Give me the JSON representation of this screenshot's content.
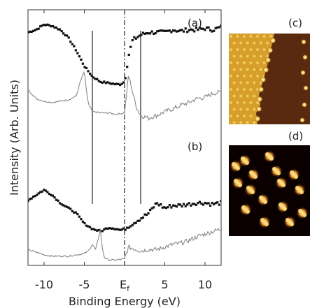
{
  "chart_data": [
    {
      "type": "scatter",
      "panels": [
        "(a)",
        "(b)"
      ],
      "xlabel": "Binding Energy (eV)",
      "ylabel": "Intensity (Arb. Units)",
      "xlim": [
        -12,
        12
      ],
      "x_tick_labels": [
        "-10",
        "-5",
        "E_f",
        "5",
        "10"
      ],
      "x_ticks": [
        -10,
        -5,
        0,
        5,
        10
      ],
      "ef_subscript": "f",
      "vertical_lines_ev": [
        -4,
        2
      ],
      "fermi_line_ev": 0,
      "series": [
        {
          "panel": "(a)",
          "style": "points",
          "color": "#111111",
          "x": [
            -12,
            -11,
            -10,
            -9,
            -8,
            -7,
            -6,
            -5,
            -4,
            -3,
            -2,
            -1,
            -0.5,
            0,
            0.5,
            1,
            2,
            3,
            4,
            5,
            6,
            7,
            8,
            9,
            10,
            11,
            12
          ],
          "y": [
            0.88,
            0.9,
            0.94,
            0.93,
            0.9,
            0.84,
            0.74,
            0.62,
            0.54,
            0.5,
            0.49,
            0.48,
            0.48,
            0.5,
            0.7,
            0.82,
            0.86,
            0.88,
            0.88,
            0.88,
            0.9,
            0.89,
            0.9,
            0.9,
            0.91,
            0.9,
            0.92
          ]
        },
        {
          "panel": "(a)",
          "style": "line",
          "color": "#888888",
          "x": [
            -12,
            -11,
            -10,
            -9,
            -8,
            -7,
            -6,
            -5.5,
            -5,
            -4.8,
            -4.5,
            -4,
            -3,
            -2,
            -1,
            0,
            0.5,
            1,
            1.5,
            2,
            3,
            4,
            5,
            6,
            7,
            8,
            9,
            10,
            11,
            12
          ],
          "y": [
            0.44,
            0.37,
            0.35,
            0.34,
            0.35,
            0.36,
            0.39,
            0.5,
            0.58,
            0.46,
            0.33,
            0.27,
            0.26,
            0.26,
            0.25,
            0.26,
            0.55,
            0.42,
            0.3,
            0.24,
            0.22,
            0.24,
            0.27,
            0.29,
            0.32,
            0.34,
            0.37,
            0.38,
            0.41,
            0.42
          ]
        },
        {
          "panel": "(b)",
          "style": "points",
          "color": "#111111",
          "x": [
            -12,
            -11,
            -10,
            -9,
            -8,
            -7,
            -6,
            -5,
            -4,
            -3,
            -2,
            -1,
            -0.5,
            0,
            0.5,
            1,
            2,
            3,
            4,
            5,
            6,
            7,
            8,
            9,
            10,
            11,
            12
          ],
          "y": [
            0.48,
            0.52,
            0.56,
            0.52,
            0.46,
            0.42,
            0.38,
            0.3,
            0.26,
            0.24,
            0.27,
            0.26,
            0.25,
            0.26,
            0.28,
            0.3,
            0.34,
            0.38,
            0.46,
            0.42,
            0.44,
            0.44,
            0.45,
            0.46,
            0.46,
            0.45,
            0.46
          ]
        },
        {
          "panel": "(b)",
          "style": "line",
          "color": "#888888",
          "x": [
            -12,
            -11,
            -10,
            -9,
            -8,
            -7,
            -6,
            -5,
            -4.5,
            -4,
            -3.6,
            -3.2,
            -3,
            -2.8,
            -2.5,
            -2,
            -1,
            0,
            0.5,
            1,
            2,
            3,
            4,
            5,
            6,
            7,
            8,
            9,
            10,
            11,
            12
          ],
          "y": [
            0.1,
            0.08,
            0.06,
            0.05,
            0.05,
            0.05,
            0.06,
            0.07,
            0.09,
            0.14,
            0.1,
            0.2,
            0.26,
            0.12,
            0.04,
            0.02,
            0.02,
            0.03,
            0.12,
            0.11,
            0.09,
            0.1,
            0.1,
            0.12,
            0.14,
            0.15,
            0.17,
            0.2,
            0.22,
            0.24,
            0.26
          ]
        }
      ]
    },
    {
      "type": "image",
      "panel": "(c)",
      "colors": {
        "bright": "#e8c040",
        "dark": "#5a2a10",
        "edge": "#f5e8a0"
      }
    },
    {
      "type": "image",
      "panel": "(d)",
      "colors": {
        "background": "#0a0000",
        "spot": "#f0a030",
        "spot_core": "#fff0a0"
      },
      "spot_count": 16
    }
  ]
}
